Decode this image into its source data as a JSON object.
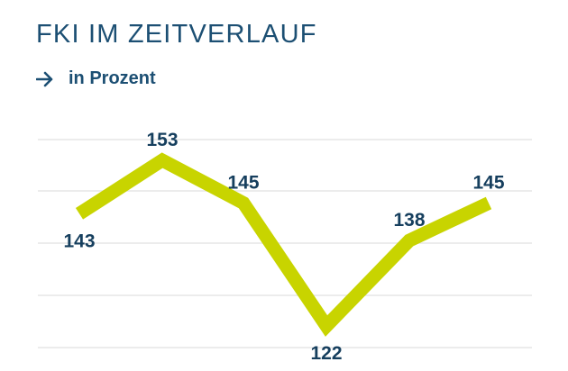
{
  "header": {
    "title": "FKI IM ZEITVERLAUF",
    "subtitle": "in Prozent",
    "subtitle_icon": "arrow-right-icon"
  },
  "colors": {
    "title": "#1c4f73",
    "labels": "#163f5e",
    "line": "#c8d400",
    "grid": "#e6e6e6"
  },
  "chart_data": {
    "type": "line",
    "title": "FKI IM ZEITVERLAUF",
    "subtitle": "in Prozent",
    "xlabel": "",
    "ylabel": "",
    "x": [
      "",
      "",
      "",
      "",
      "",
      ""
    ],
    "values": [
      143,
      153,
      145,
      122,
      138,
      145
    ],
    "data_labels": [
      "143",
      "153",
      "145",
      "122",
      "138",
      "145"
    ],
    "label_position": [
      "below",
      "above",
      "above",
      "below",
      "above",
      "above"
    ],
    "grid": true,
    "axis_labels_shown": false
  }
}
